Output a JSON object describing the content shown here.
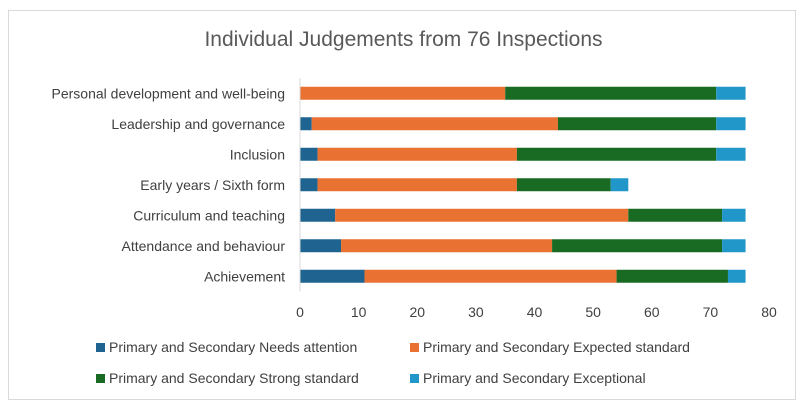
{
  "chart_data": {
    "type": "bar",
    "orientation": "horizontal",
    "stacked": true,
    "title": "Individual Judgements from 76 Inspections",
    "categories": [
      "Personal development and well-being",
      "Leadership and governance",
      "Inclusion",
      "Early years / Sixth form",
      "Curriculum and teaching",
      "Attendance and behaviour",
      "Achievement"
    ],
    "series": [
      {
        "name": "Primary and Secondary Needs attention",
        "color": "#1f6391",
        "values": [
          0,
          2,
          3,
          3,
          6,
          7,
          11
        ]
      },
      {
        "name": "Primary and Secondary Expected standard",
        "color": "#e97132",
        "values": [
          35,
          42,
          34,
          34,
          50,
          36,
          43
        ]
      },
      {
        "name": "Primary and Secondary Strong standard",
        "color": "#196b24",
        "values": [
          36,
          27,
          34,
          16,
          16,
          29,
          19
        ]
      },
      {
        "name": "Primary and Secondary Exceptional",
        "color": "#2196c9",
        "values": [
          5,
          5,
          5,
          3,
          4,
          4,
          3
        ]
      }
    ],
    "xlim": [
      0,
      80
    ],
    "xticks": [
      0,
      10,
      20,
      30,
      40,
      50,
      60,
      70,
      80
    ],
    "legend_position": "bottom",
    "grid": false
  }
}
